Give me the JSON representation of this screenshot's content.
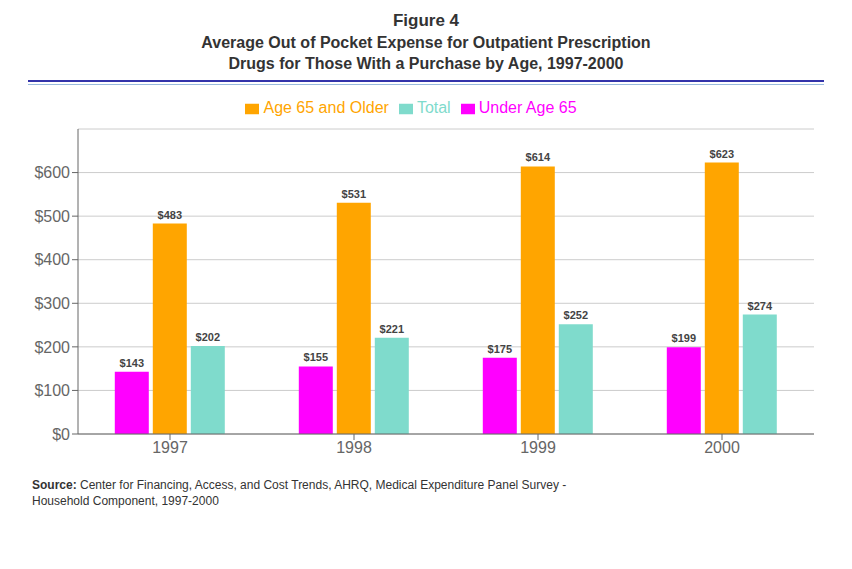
{
  "chart_data": {
    "type": "bar",
    "title": "Figure 4",
    "subtitle": "Average Out of Pocket Expense for Outpatient Prescription\nDrugs for Those With a Purchase by Age, 1997-2000",
    "categories": [
      "1997",
      "1998",
      "1999",
      "2000"
    ],
    "series": [
      {
        "name": "Under Age 65",
        "color": "#FF00FF",
        "values": [
          143,
          155,
          175,
          199
        ],
        "value_labels": [
          "$143",
          "$155",
          "$175",
          "$199"
        ]
      },
      {
        "name": "Age 65 and Older",
        "color": "#FFA500",
        "values": [
          483,
          531,
          614,
          623
        ],
        "value_labels": [
          "$483",
          "$531",
          "$614",
          "$623"
        ]
      },
      {
        "name": "Total",
        "color": "#7FDBCC",
        "values": [
          202,
          221,
          252,
          274
        ],
        "value_labels": [
          "$202",
          "$221",
          "$252",
          "$274"
        ]
      }
    ],
    "ylim": [
      0,
      700
    ],
    "yticks": [
      {
        "value": 0,
        "label": "$0"
      },
      {
        "value": 100,
        "label": "$100"
      },
      {
        "value": 200,
        "label": "$200"
      },
      {
        "value": 300,
        "label": "$300"
      },
      {
        "value": 400,
        "label": "$400"
      },
      {
        "value": 500,
        "label": "$500"
      },
      {
        "value": 600,
        "label": "$600"
      }
    ],
    "grid": true,
    "legend": "top",
    "data_labels": true,
    "annotations": [
      "Source: Center for Financing, Access, and Cost Trends, AHRQ, Medical Expenditure Panel Survey -\nHousehold Component, 1997-2000"
    ]
  }
}
